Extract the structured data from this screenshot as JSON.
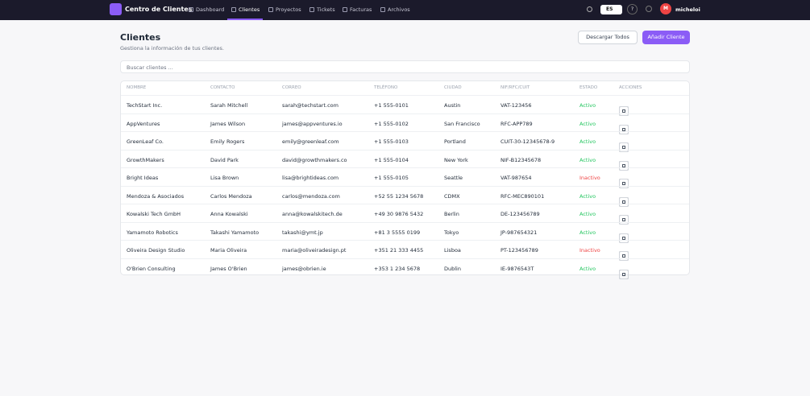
{
  "nav": {
    "brand": "Centro de Clientes",
    "links": [
      "Dashboard",
      "Clientes",
      "Proyectos",
      "Tickets",
      "Facturas",
      "Archivos"
    ],
    "language": "ES",
    "help": "?",
    "avatar": "M",
    "user": "micheloi"
  },
  "header": {
    "title": "Clientes",
    "subtitle": "Gestiona la información de tus clientes.",
    "buttons": [
      "Descargar Todos",
      "Añadir Cliente"
    ]
  },
  "search": {
    "placeholder": "Buscar clientes ..."
  },
  "table": {
    "columns": [
      "NOMBRE",
      "CONTACTO",
      "CORREO",
      "TELÉFONO",
      "CIUDAD",
      "NIF/RFC/CUIT",
      "ESTADO",
      "ACCIONES"
    ],
    "rows": [
      [
        "TechStart Inc.",
        "Sarah Mitchell",
        "sarah@techstart.com",
        "+1 555-0101",
        "Austin",
        "VAT-123456",
        "Activo"
      ],
      [
        "AppVentures",
        "James Wilson",
        "james@appventures.io",
        "+1 555-0102",
        "San Francisco",
        "RFC-APP789",
        "Activo"
      ],
      [
        "GreenLeaf Co.",
        "Emily Rogers",
        "emily@greenleaf.com",
        "+1 555-0103",
        "Portland",
        "CUIT-30-12345678-9",
        "Activo"
      ],
      [
        "GrowthMakers",
        "David Park",
        "david@growthmakers.co",
        "+1 555-0104",
        "New York",
        "NIF-B12345678",
        "Activo"
      ],
      [
        "Bright Ideas",
        "Lisa Brown",
        "lisa@brightideas.com",
        "+1 555-0105",
        "Seattle",
        "VAT-987654",
        "Inactivo"
      ],
      [
        "Mendoza & Asociados",
        "Carlos Mendoza",
        "carlos@mendoza.com",
        "+52 55 1234 5678",
        "CDMX",
        "RFC-MEC890101",
        "Activo"
      ],
      [
        "Kowalski Tech GmbH",
        "Anna Kowalski",
        "anna@kowalskitech.de",
        "+49 30 9876 5432",
        "Berlin",
        "DE-123456789",
        "Activo"
      ],
      [
        "Yamamoto Robotics",
        "Takashi Yamamoto",
        "takashi@ymt.jp",
        "+81 3 5555 0199",
        "Tokyo",
        "JP-987654321",
        "Activo"
      ],
      [
        "Oliveira Design Studio",
        "Maria Oliveira",
        "maria@oliveiradesign.pt",
        "+351 21 333 4455",
        "Lisboa",
        "PT-123456789",
        "Inactivo"
      ],
      [
        "O'Brien Consulting",
        "James O'Brien",
        "james@obrien.ie",
        "+353 1 234 5678",
        "Dublin",
        "IE-9876543T",
        "Activo"
      ]
    ]
  }
}
